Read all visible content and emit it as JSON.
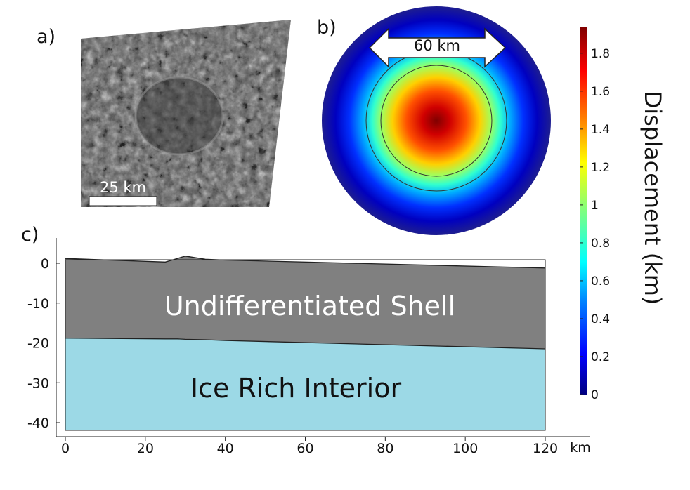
{
  "panel_a": {
    "label": "a)",
    "scale_bar_label": "25 km"
  },
  "panel_b": {
    "label": "b)",
    "arrow_label": "60 km"
  },
  "colorbar": {
    "title": "Displacement (km)",
    "ticks": [
      "0",
      "0.2",
      "0.4",
      "0.6",
      "0.8",
      "1",
      "1.2",
      "1.4",
      "1.6",
      "1.8"
    ],
    "colors": [
      "#00007f",
      "#0000ff",
      "#007fff",
      "#00ffff",
      "#7fff7f",
      "#ffff00",
      "#ff7f00",
      "#ff0000",
      "#7f0000"
    ]
  },
  "panel_c": {
    "label": "c)",
    "x_unit": "km",
    "x_ticks": [
      "0",
      "20",
      "40",
      "60",
      "80",
      "100",
      "120"
    ],
    "y_ticks": [
      "0",
      "-10",
      "-20",
      "-30",
      "-40"
    ],
    "region_shell": "Undifferentiated Shell",
    "region_interior": "Ice Rich Interior",
    "shell_color": "#808080",
    "interior_color": "#9cd9e6"
  },
  "chart_data": {
    "type": "area",
    "x": [
      0,
      25,
      28,
      30,
      35,
      40,
      120
    ],
    "series": [
      {
        "name": "Undifferentiated Shell",
        "values": [
          1.2,
          0.3,
          1.2,
          1.8,
          1.0,
          0.8,
          -1.2
        ]
      },
      {
        "name": "Ice Rich Interior",
        "values": [
          -18.8,
          -19.0,
          -19.0,
          -19.1,
          -19.2,
          -19.4,
          -21.5
        ]
      }
    ],
    "xlim": [
      0,
      120
    ],
    "ylim": [
      -42,
      0
    ],
    "xlabel": "km",
    "ylabel": ""
  }
}
